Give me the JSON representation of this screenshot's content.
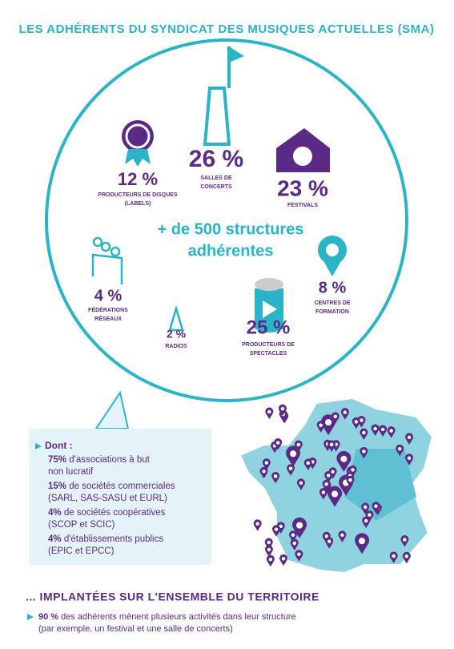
{
  "header": {
    "title": "LES ADHÉRENTS DU SYNDICAT DES MUSIQUES ACTUELLES (SMA)"
  },
  "center": {
    "line1": "+ de 500 structures",
    "line2": "adhérentes"
  },
  "segments": [
    {
      "value": "12 %",
      "label_lines": [
        "PRODUCTEURS DE DISQUES",
        "(LABELS)"
      ]
    },
    {
      "value": "26 %",
      "label_lines": [
        "SALLES DE",
        "CONCERTS"
      ]
    },
    {
      "value": "23 %",
      "label_lines": [
        "FESTIVALS"
      ]
    },
    {
      "value": "4 %",
      "label_lines": [
        "FÉDÉRATIONS",
        "RÉSEAUX"
      ]
    },
    {
      "value": "2 %",
      "label_lines": [
        "RADIOS"
      ]
    },
    {
      "value": "25 %",
      "label_lines": [
        "PRODUCTEURS DE",
        "SPECTACLES"
      ]
    },
    {
      "value": "8 %",
      "label_lines": [
        "CENTRES DE",
        "FORMATION"
      ]
    }
  ],
  "callout": {
    "heading": "Dont :",
    "items": [
      {
        "bold": "75%",
        "rest": " d'associations à but",
        "line2": "non lucratif"
      },
      {
        "bold": "15%",
        "rest": " de sociétés commerciales",
        "line2": "(SARL, SAS-SASU et EURL)"
      },
      {
        "bold": "4%",
        "rest": " de sociétés coopératives",
        "line2": "(SCOP et SCIC)"
      },
      {
        "bold": "4%",
        "rest": " d'établissements publics",
        "line2": "(EPIC et EPCC)"
      }
    ]
  },
  "territory": {
    "heading": "... IMPLANTÉES SUR L'ENSEMBLE DU TERRITOIRE",
    "bold": "90 %",
    "rest": " des adhérents mènent plusieurs activités dans leur structure",
    "line2": "(par exemple, un festival et une salle de concerts)"
  }
}
